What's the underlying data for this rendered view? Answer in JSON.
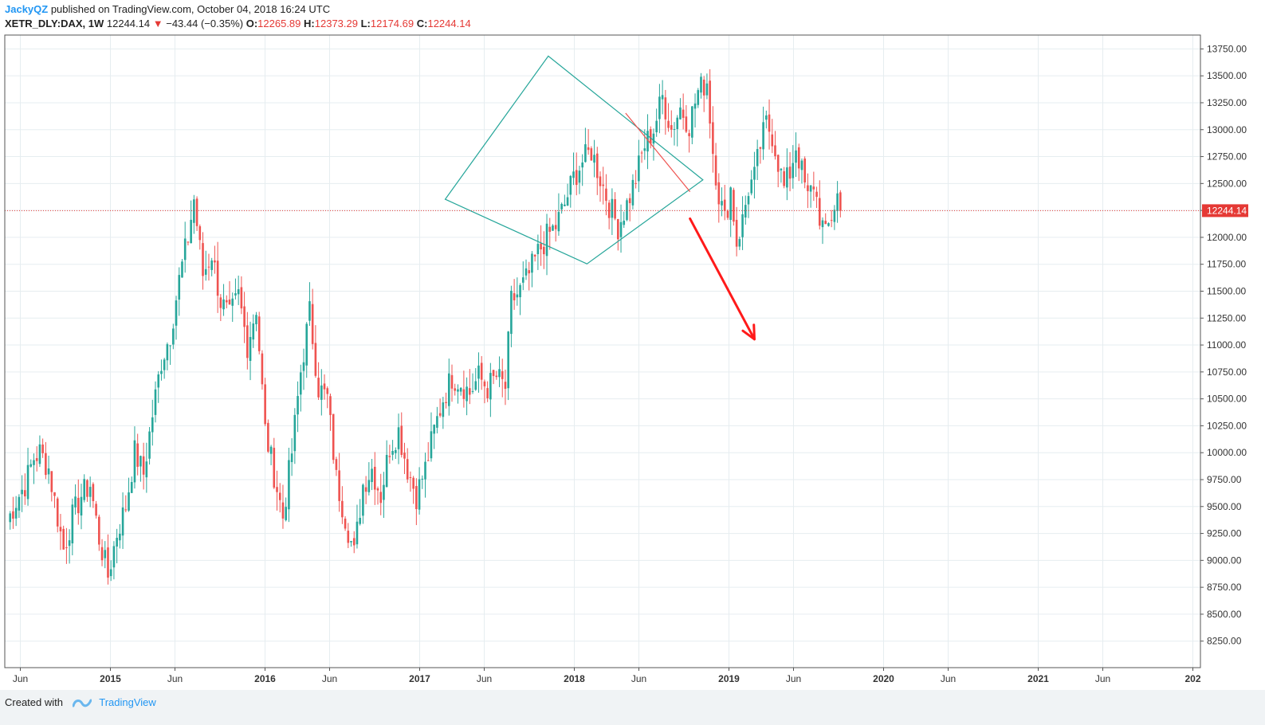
{
  "header": {
    "author": "JackyQZ",
    "published_text": "published on TradingView.com, October 04, 2018 16:24 UTC",
    "symbol": "XETR_DLY:DAX, 1W",
    "last_price": "12244.14",
    "change": "−43.44 (−0.35%)",
    "open_label": "O:",
    "open": "12265.89",
    "high_label": "H:",
    "high": "12373.29",
    "low_label": "L:",
    "low": "12174.69",
    "close_label": "C:",
    "close": "12244.14"
  },
  "footer": {
    "created_with": "Created with",
    "brand": "TradingView"
  },
  "colors": {
    "up": "#26a69a",
    "down": "#ef5350",
    "pattern": "#26a69a",
    "arrow": "#ff1a1a",
    "price_line": "#e53935"
  },
  "chart_data": {
    "type": "candlestick",
    "interval": "1W",
    "ylim": [
      8000,
      13875
    ],
    "y_ticks": [
      "13750.00",
      "13500.00",
      "13250.00",
      "13000.00",
      "12750.00",
      "12500.00",
      "12250.00",
      "12000.00",
      "11750.00",
      "11500.00",
      "11250.00",
      "11000.00",
      "10750.00",
      "10500.00",
      "10250.00",
      "10000.00",
      "9750.00",
      "9500.00",
      "9250.00",
      "9000.00",
      "8750.00",
      "8500.00",
      "8250.00"
    ],
    "x_ticks": [
      "Jun",
      "2015",
      "Jun",
      "2016",
      "Jun",
      "2017",
      "Jun",
      "2018",
      "Jun",
      "2019",
      "Jun",
      "2020",
      "Jun",
      "2021",
      "Jun",
      "202"
    ],
    "last_price_label": "12244.14",
    "last_price": 12244.14,
    "anchors": [
      [
        0,
        9350
      ],
      [
        3,
        9550
      ],
      [
        6,
        9700
      ],
      [
        9,
        9950
      ],
      [
        11,
        10000
      ],
      [
        14,
        9850
      ],
      [
        16,
        9550
      ],
      [
        19,
        9100
      ],
      [
        22,
        9400
      ],
      [
        25,
        9600
      ],
      [
        28,
        9700
      ],
      [
        31,
        9200
      ],
      [
        34,
        8850
      ],
      [
        37,
        9250
      ],
      [
        40,
        9500
      ],
      [
        43,
        10000
      ],
      [
        46,
        9800
      ],
      [
        49,
        10350
      ],
      [
        52,
        10850
      ],
      [
        55,
        11100
      ],
      [
        58,
        11600
      ],
      [
        61,
        12000
      ],
      [
        63,
        12350
      ],
      [
        66,
        11650
      ],
      [
        69,
        11850
      ],
      [
        72,
        11400
      ],
      [
        75,
        11250
      ],
      [
        78,
        11450
      ],
      [
        81,
        11000
      ],
      [
        84,
        11350
      ],
      [
        87,
        10200
      ],
      [
        90,
        9800
      ],
      [
        93,
        9400
      ],
      [
        96,
        10000
      ],
      [
        99,
        10750
      ],
      [
        102,
        11300
      ],
      [
        105,
        10600
      ],
      [
        108,
        10500
      ],
      [
        111,
        9750
      ],
      [
        114,
        9400
      ],
      [
        117,
        9050
      ],
      [
        120,
        9700
      ],
      [
        123,
        9850
      ],
      [
        126,
        9600
      ],
      [
        129,
        10050
      ],
      [
        132,
        10200
      ],
      [
        135,
        9850
      ],
      [
        138,
        9600
      ],
      [
        141,
        9850
      ],
      [
        144,
        10200
      ],
      [
        147,
        10500
      ],
      [
        150,
        10700
      ],
      [
        153,
        10650
      ],
      [
        156,
        10550
      ],
      [
        159,
        10700
      ],
      [
        162,
        10600
      ],
      [
        165,
        10700
      ],
      [
        168,
        10600
      ],
      [
        170,
        11400
      ],
      [
        173,
        11500
      ],
      [
        176,
        11650
      ],
      [
        179,
        11850
      ],
      [
        182,
        12000
      ],
      [
        185,
        12100
      ],
      [
        188,
        12300
      ],
      [
        191,
        12550
      ],
      [
        194,
        12700
      ],
      [
        197,
        12800
      ],
      [
        200,
        12550
      ],
      [
        203,
        12300
      ],
      [
        206,
        12100
      ],
      [
        209,
        12300
      ],
      [
        212,
        12550
      ],
      [
        215,
        12850
      ],
      [
        218,
        13000
      ],
      [
        221,
        13300
      ],
      [
        224,
        13000
      ],
      [
        227,
        13200
      ],
      [
        230,
        13050
      ],
      [
        233,
        13350
      ],
      [
        236,
        13450
      ],
      [
        238,
        12800
      ],
      [
        240,
        12400
      ],
      [
        242,
        12150
      ],
      [
        244,
        12450
      ],
      [
        246,
        11950
      ],
      [
        248,
        12150
      ],
      [
        250,
        12450
      ],
      [
        252,
        12550
      ],
      [
        254,
        12850
      ],
      [
        256,
        13050
      ],
      [
        258,
        12950
      ],
      [
        260,
        12700
      ],
      [
        262,
        12450
      ],
      [
        264,
        12600
      ],
      [
        266,
        12850
      ],
      [
        268,
        12600
      ],
      [
        270,
        12350
      ],
      [
        272,
        12500
      ],
      [
        274,
        12200
      ],
      [
        276,
        12000
      ],
      [
        278,
        12200
      ],
      [
        280,
        12390
      ],
      [
        281,
        12244
      ]
    ],
    "annotations": {
      "diamond": {
        "left": [
          "2017-03",
          12350
        ],
        "top": [
          "2017-11",
          13680
        ],
        "right": [
          "2018-11",
          12530
        ],
        "bottom": [
          "2018-02",
          11750
        ]
      },
      "downtrend_line": {
        "from": [
          "2018-05",
          13150
        ],
        "to": [
          "2018-10",
          12420
        ]
      },
      "arrow": {
        "from": [
          "2018-10",
          12170
        ],
        "to": [
          "2019-03",
          11050
        ]
      }
    }
  }
}
